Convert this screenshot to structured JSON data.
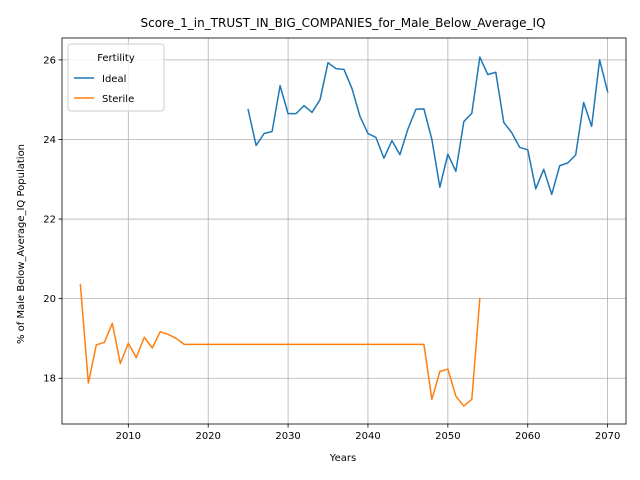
{
  "chart_data": {
    "type": "line",
    "title": "Score_1_in_TRUST_IN_BIG_COMPANIES_for_Male_Below_Average_IQ",
    "xlabel": "Years",
    "ylabel": "% of Male Below_Average_IQ Population",
    "xlim": [
      2001.7,
      2072.3
    ],
    "ylim": [
      16.85,
      26.55
    ],
    "xticks": [
      2010,
      2020,
      2030,
      2040,
      2050,
      2060,
      2070
    ],
    "yticks": [
      18,
      20,
      22,
      24,
      26
    ],
    "grid": true,
    "legend": {
      "title": "Fertility",
      "placement": "top-left"
    },
    "series": [
      {
        "name": "Ideal",
        "color": "#1f77b4",
        "x": [
          2025,
          2026,
          2027,
          2028,
          2029,
          2030,
          2031,
          2032,
          2033,
          2034,
          2035,
          2036,
          2037,
          2038,
          2039,
          2040,
          2041,
          2042,
          2043,
          2044,
          2045,
          2046,
          2047,
          2048,
          2049,
          2050,
          2051,
          2052,
          2053,
          2054,
          2055,
          2056,
          2057,
          2058,
          2059,
          2060,
          2061,
          2062,
          2063,
          2064,
          2065,
          2066,
          2067,
          2068,
          2069,
          2070
        ],
        "y": [
          24.75,
          23.85,
          24.15,
          24.2,
          25.35,
          24.65,
          24.65,
          24.85,
          24.68,
          25.0,
          25.93,
          25.78,
          25.76,
          25.28,
          24.58,
          24.15,
          24.05,
          23.53,
          23.97,
          23.62,
          24.26,
          24.76,
          24.77,
          24.0,
          22.8,
          23.63,
          23.2,
          24.45,
          24.66,
          26.07,
          25.63,
          25.69,
          24.43,
          24.17,
          23.8,
          23.74,
          22.76,
          23.25,
          22.62,
          23.34,
          23.41,
          23.61,
          24.93,
          24.33,
          26.0,
          25.2
        ]
      },
      {
        "name": "Sterile",
        "color": "#ff7f0e",
        "x": [
          2004,
          2005,
          2006,
          2007,
          2008,
          2009,
          2010,
          2011,
          2012,
          2013,
          2014,
          2015,
          2016,
          2017,
          2018,
          2019,
          2020,
          2021,
          2022,
          2023,
          2024,
          2025,
          2026,
          2027,
          2028,
          2029,
          2030,
          2031,
          2032,
          2033,
          2034,
          2035,
          2036,
          2037,
          2038,
          2039,
          2040,
          2041,
          2042,
          2043,
          2044,
          2045,
          2046,
          2047,
          2048,
          2049,
          2050,
          2051,
          2052,
          2053,
          2054
        ],
        "y": [
          20.35,
          17.88,
          18.84,
          18.9,
          19.38,
          18.37,
          18.88,
          18.52,
          19.03,
          18.76,
          19.17,
          19.1,
          19.0,
          18.85,
          18.85,
          18.85,
          18.85,
          18.85,
          18.85,
          18.85,
          18.85,
          18.85,
          18.85,
          18.85,
          18.85,
          18.85,
          18.85,
          18.85,
          18.85,
          18.85,
          18.85,
          18.85,
          18.85,
          18.85,
          18.85,
          18.85,
          18.85,
          18.85,
          18.85,
          18.85,
          18.85,
          18.85,
          18.85,
          18.85,
          17.47,
          18.17,
          18.23,
          17.55,
          17.3,
          17.47,
          20.0
        ]
      }
    ]
  }
}
